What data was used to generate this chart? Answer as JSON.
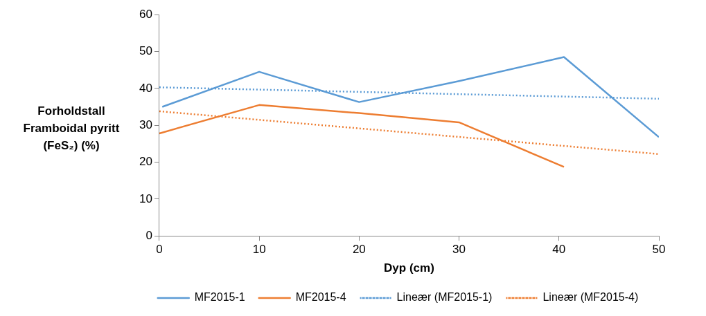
{
  "chart_data": {
    "type": "line",
    "xlabel": "Dyp (cm)",
    "ylabel": "Forholdstall\nFramboidal pyritt\n(FeS₂)  (%)",
    "xlim": [
      0,
      50
    ],
    "xticks": [
      0,
      10,
      20,
      30,
      40,
      50
    ],
    "ylim": [
      0,
      60
    ],
    "yticks": [
      0,
      10,
      20,
      30,
      40,
      50,
      60
    ],
    "grid": false,
    "legend": "bottom",
    "marker": "none",
    "series": [
      {
        "name": "MF2015-1",
        "color": "#5b9bd5",
        "line_style": "solid",
        "x": [
          0.3,
          10,
          20,
          30,
          40.5,
          50
        ],
        "values": [
          35,
          44.5,
          36.3,
          42,
          48.5,
          26.8
        ]
      },
      {
        "name": "MF2015-4",
        "color": "#ed7d31",
        "line_style": "solid",
        "x": [
          0,
          10,
          20,
          30,
          40.5
        ],
        "values": [
          27.8,
          35.5,
          33.3,
          30.8,
          18.7
        ]
      },
      {
        "name": "Lineær (MF2015-1)",
        "color": "#5b9bd5",
        "line_style": "dotted",
        "x": [
          0,
          50
        ],
        "values": [
          40.3,
          37.2
        ]
      },
      {
        "name": "Lineær (MF2015-4)",
        "color": "#ed7d31",
        "line_style": "dotted",
        "x": [
          0,
          50
        ],
        "values": [
          33.8,
          22.2
        ]
      }
    ]
  }
}
